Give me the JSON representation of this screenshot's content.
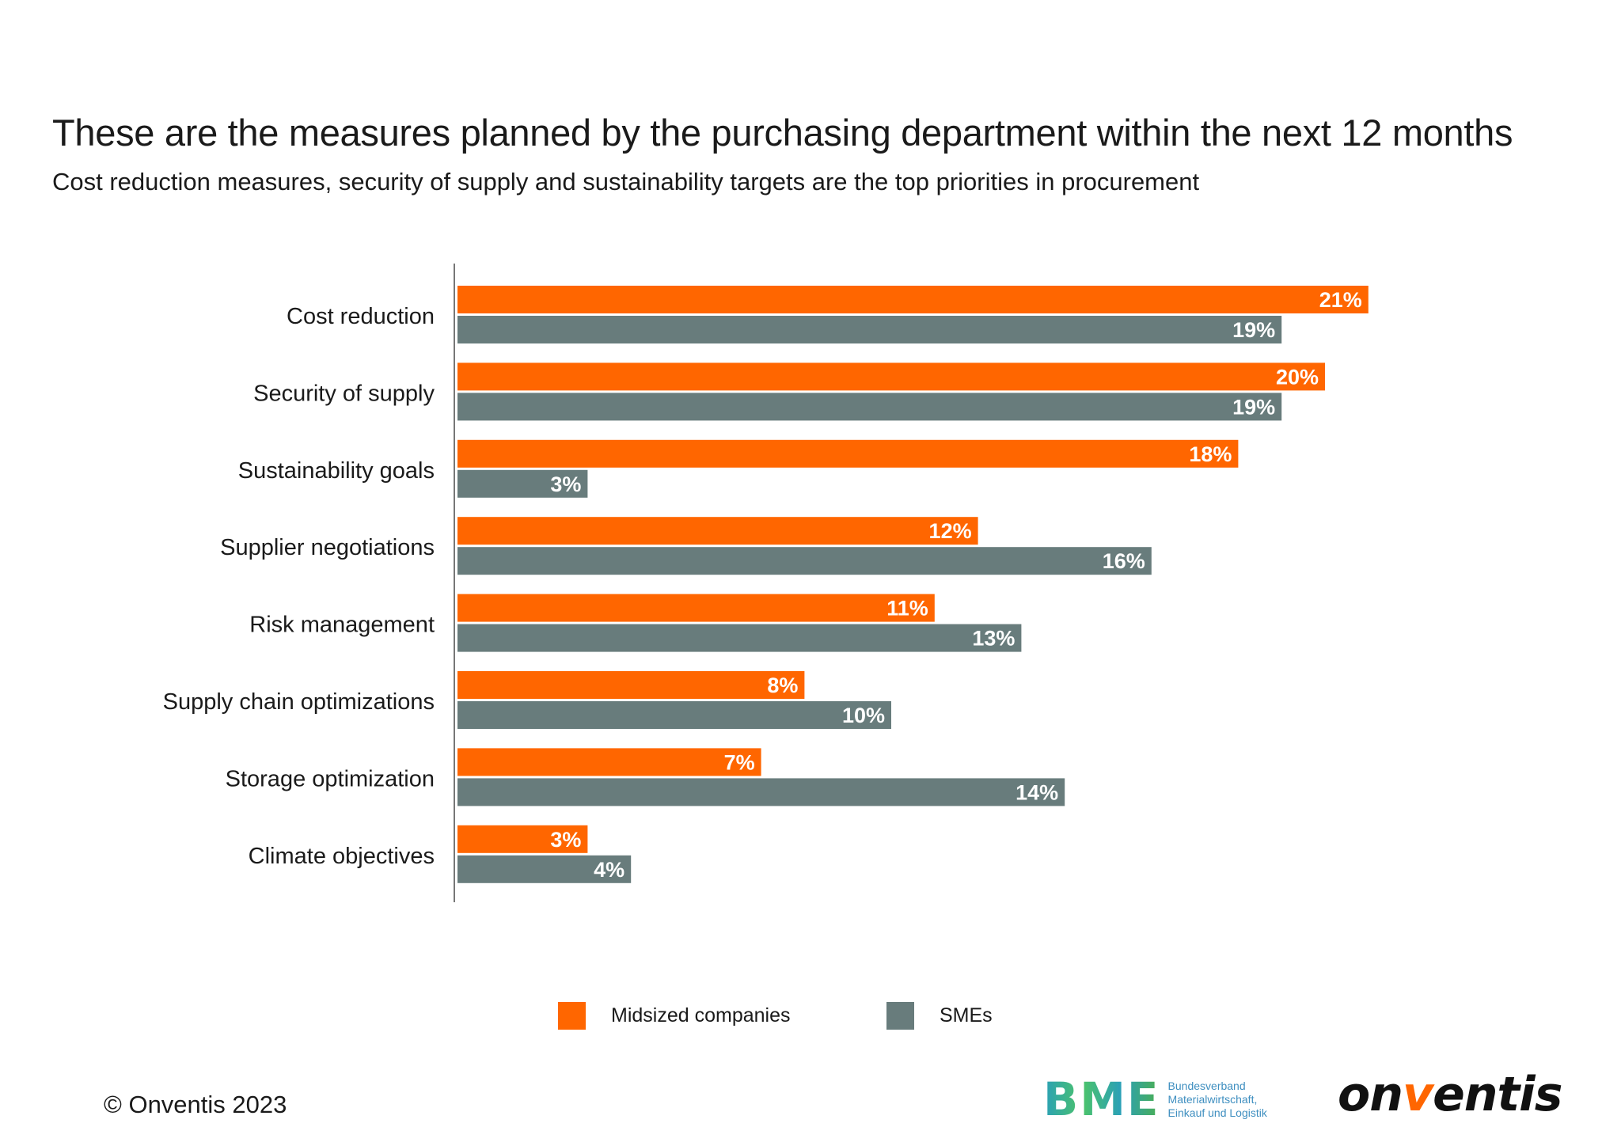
{
  "chart_data": {
    "type": "bar",
    "orientation": "horizontal",
    "title": "These are the measures planned by the purchasing department within the next 12 months",
    "subtitle": "Cost reduction measures, security of supply and sustainability targets are the top priorities in procurement",
    "categories": [
      "Cost reduction",
      "Security of supply",
      "Sustainability goals",
      "Supplier negotiations",
      "Risk management",
      "Supply chain optimizations",
      "Storage optimization",
      "Climate objectives"
    ],
    "series": [
      {
        "name": "Midsized companies",
        "color": "#FF6600",
        "values": [
          21,
          20,
          18,
          12,
          11,
          8,
          7,
          3
        ],
        "labels": [
          "21%",
          "20%",
          "18%",
          "12%",
          "11%",
          "8%",
          "7%",
          "3%"
        ]
      },
      {
        "name": "SMEs",
        "color": "#687C7C",
        "values": [
          19,
          19,
          3,
          16,
          13,
          10,
          14,
          4
        ],
        "labels": [
          "19%",
          "19%",
          "3%",
          "16%",
          "13%",
          "10%",
          "14%",
          "4%"
        ]
      }
    ],
    "unit": "%",
    "grid": false,
    "legend_position": "bottom"
  },
  "footer": {
    "copyright": "© Onventis 2023",
    "bme_logo": {
      "mark": "BME",
      "text": [
        "Bundesverband",
        "Materialwirtschaft,",
        "Einkauf und Logistik"
      ]
    },
    "onventis_logo": {
      "pre": "on",
      "v": "v",
      "post": "entis"
    }
  }
}
